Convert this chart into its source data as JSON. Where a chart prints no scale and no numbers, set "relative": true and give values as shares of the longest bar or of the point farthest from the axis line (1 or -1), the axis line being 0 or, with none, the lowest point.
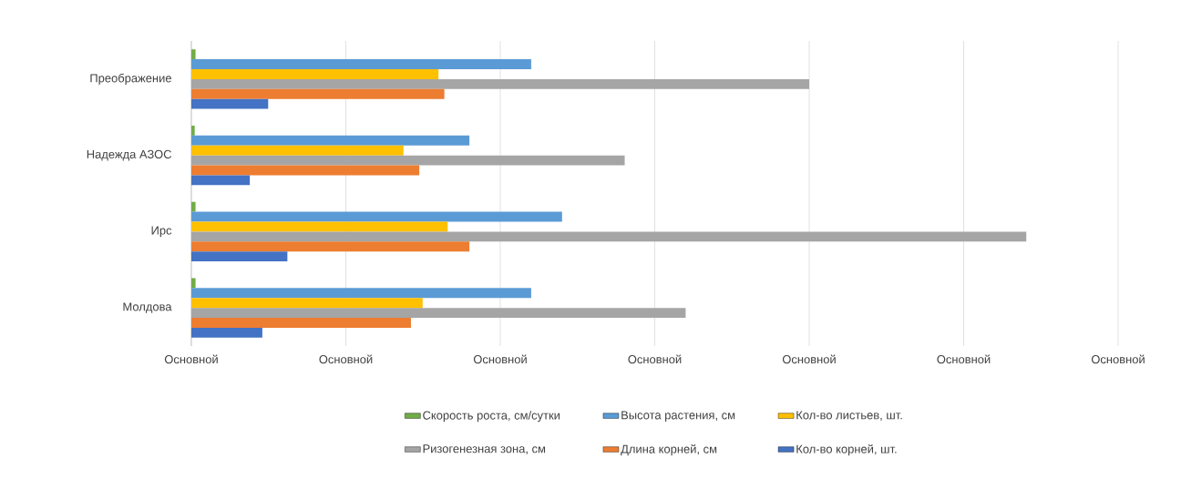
{
  "chart_data": {
    "type": "bar",
    "orientation": "horizontal",
    "relative": true,
    "categories": [
      "Преображение",
      "Надежда АЗОС",
      "Ирс",
      "Молдова"
    ],
    "annotations": [
      "Основной",
      "Основной",
      "Основной",
      "Основной",
      "Основной",
      "Основной",
      "Основной"
    ],
    "series": [
      {
        "name": "Скорость роста, см/сутки",
        "color": "#70ad47",
        "values": [
          0.005,
          0.004,
          0.005,
          0.005
        ]
      },
      {
        "name": "Высота растения, см",
        "color": "#5b9bd5",
        "values": [
          0.407,
          0.333,
          0.444,
          0.407
        ]
      },
      {
        "name": "Кол-во листьев, шт.",
        "color": "#ffc000",
        "values": [
          0.296,
          0.254,
          0.307,
          0.277
        ]
      },
      {
        "name": "Ризогенезная зона, см",
        "color": "#a5a5a5",
        "values": [
          0.74,
          0.519,
          1.0,
          0.592
        ]
      },
      {
        "name": "Длина корней, см",
        "color": "#ed7d31",
        "values": [
          0.303,
          0.273,
          0.333,
          0.263
        ]
      },
      {
        "name": "Кол-во корней, шт.",
        "color": "#4472c4",
        "values": [
          0.092,
          0.07,
          0.115,
          0.085
        ]
      }
    ],
    "grid": "x",
    "legend": "bottom"
  }
}
